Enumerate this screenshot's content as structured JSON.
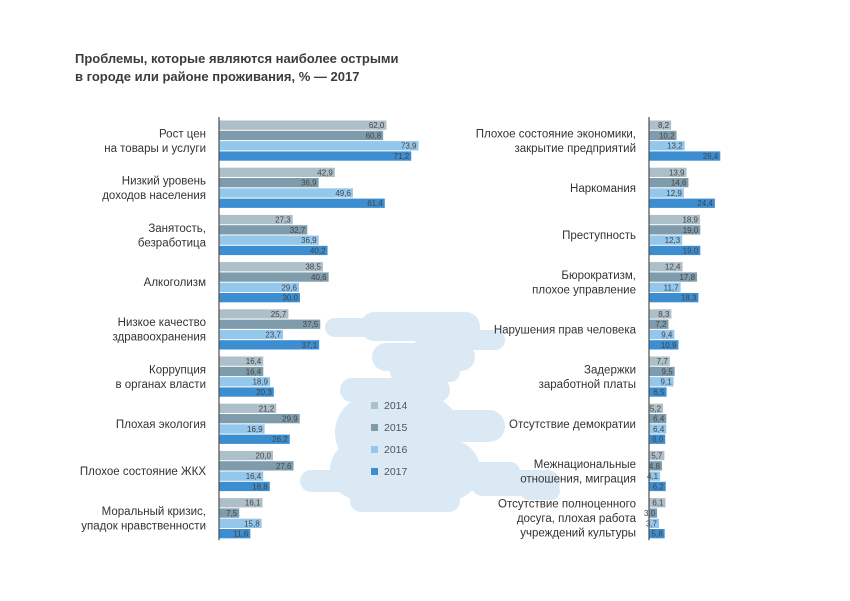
{
  "title_lines": [
    "Проблемы, которые являются наиболее острыми",
    "в городе или районе проживания, % — 2017"
  ],
  "colors": {
    "2014": "#adbfc9",
    "2015": "#7f9cad",
    "2016": "#93c7ec",
    "2017": "#3c8ed0",
    "axis": "#4d4d4d",
    "label": "#333333",
    "value": "#444444",
    "cloud": "#dbe9f5"
  },
  "chart_data": [
    {
      "type": "bar",
      "orientation": "horizontal",
      "series_names": [
        "2014",
        "2015",
        "2016",
        "2017"
      ],
      "categories": [
        {
          "label": [
            "Рост цен",
            "на товары и услуги"
          ],
          "values": [
            62.0,
            60.8,
            73.9,
            71.2
          ],
          "value_labels": [
            "62,0",
            "60,8",
            "73,9",
            "71,2"
          ]
        },
        {
          "label": [
            "Низкий уровень",
            "доходов населения"
          ],
          "values": [
            42.9,
            36.9,
            49.6,
            61.4
          ],
          "value_labels": [
            "42,9",
            "36,9",
            "49,6",
            "61,4"
          ]
        },
        {
          "label": [
            "Занятость,",
            "безработица"
          ],
          "values": [
            27.3,
            32.7,
            36.9,
            40.2
          ],
          "value_labels": [
            "27,3",
            "32,7",
            "36,9",
            "40,2"
          ]
        },
        {
          "label": [
            "Алкоголизм"
          ],
          "values": [
            38.5,
            40.6,
            29.6,
            30.0
          ],
          "value_labels": [
            "38,5",
            "40,6",
            "29,6",
            "30,0"
          ]
        },
        {
          "label": [
            "Низкое качество",
            "здравоохранения"
          ],
          "values": [
            25.7,
            37.5,
            23.7,
            37.1
          ],
          "value_labels": [
            "25,7",
            "37,5",
            "23,7",
            "37,1"
          ]
        },
        {
          "label": [
            "Коррупция",
            "в органах власти"
          ],
          "values": [
            16.4,
            16.4,
            18.9,
            20.3
          ],
          "value_labels": [
            "16,4",
            "16,4",
            "18,9",
            "20,3"
          ]
        },
        {
          "label": [
            "Плохая экология"
          ],
          "values": [
            21.2,
            29.9,
            16.9,
            26.2
          ],
          "value_labels": [
            "21,2",
            "29,9",
            "16,9",
            "26,2"
          ]
        },
        {
          "label": [
            "Плохое состояние ЖКХ"
          ],
          "values": [
            20.0,
            27.6,
            16.4,
            18.8
          ],
          "value_labels": [
            "20,0",
            "27,6",
            "16,4",
            "18,8"
          ]
        },
        {
          "label": [
            "Моральный кризис,",
            "упадок нравственности"
          ],
          "values": [
            16.1,
            7.5,
            15.8,
            11.6
          ],
          "value_labels": [
            "16,1",
            "7,5",
            "15,8",
            "11,6"
          ]
        }
      ]
    },
    {
      "type": "bar",
      "orientation": "horizontal",
      "series_names": [
        "2014",
        "2015",
        "2016",
        "2017"
      ],
      "categories": [
        {
          "label": [
            "Плохое состояние экономики,",
            "закрытие предприятий"
          ],
          "values": [
            8.2,
            10.2,
            13.2,
            26.4
          ],
          "value_labels": [
            "8,2",
            "10,2",
            "13,2",
            "26,4"
          ]
        },
        {
          "label": [
            "Наркомания"
          ],
          "values": [
            13.9,
            14.6,
            12.9,
            24.4
          ],
          "value_labels": [
            "13,9",
            "14,6",
            "12,9",
            "24,4"
          ]
        },
        {
          "label": [
            "Преступность"
          ],
          "values": [
            18.9,
            19.0,
            12.3,
            19.0
          ],
          "value_labels": [
            "18,9",
            "19,0",
            "12,3",
            "19,0"
          ]
        },
        {
          "label": [
            "Бюрократизм,",
            "плохое управление"
          ],
          "values": [
            12.4,
            17.8,
            11.7,
            18.3
          ],
          "value_labels": [
            "12,4",
            "17,8",
            "11,7",
            "18,3"
          ]
        },
        {
          "label": [
            "Нарушения прав человека"
          ],
          "values": [
            8.3,
            7.2,
            9.4,
            10.9
          ],
          "value_labels": [
            "8,3",
            "7,2",
            "9,4",
            "10,9"
          ]
        },
        {
          "label": [
            "Задержки",
            "заработной платы"
          ],
          "values": [
            7.7,
            9.5,
            9.1,
            6.5
          ],
          "value_labels": [
            "7,7",
            "9,5",
            "9,1",
            "6,5"
          ]
        },
        {
          "label": [
            "Отсутствие демократии"
          ],
          "values": [
            5.2,
            6.4,
            6.4,
            6.0
          ],
          "value_labels": [
            "5,2",
            "6,4",
            "6,4",
            "6,0"
          ]
        },
        {
          "label": [
            "Межнациональные",
            "отношения, миграция"
          ],
          "values": [
            5.7,
            4.8,
            4.1,
            6.2
          ],
          "value_labels": [
            "5,7",
            "4,8",
            "4,1",
            "6,2"
          ]
        },
        {
          "label": [
            "Отсутствие полноценного",
            "досуга, плохая работа",
            "учреждений культуры"
          ],
          "values": [
            6.1,
            3.0,
            3.7,
            5.8
          ],
          "value_labels": [
            "6,1",
            "3,0",
            "3,7",
            "5,8"
          ]
        }
      ]
    }
  ],
  "legend": {
    "position": "center",
    "entries": [
      "2014",
      "2015",
      "2016",
      "2017"
    ]
  }
}
